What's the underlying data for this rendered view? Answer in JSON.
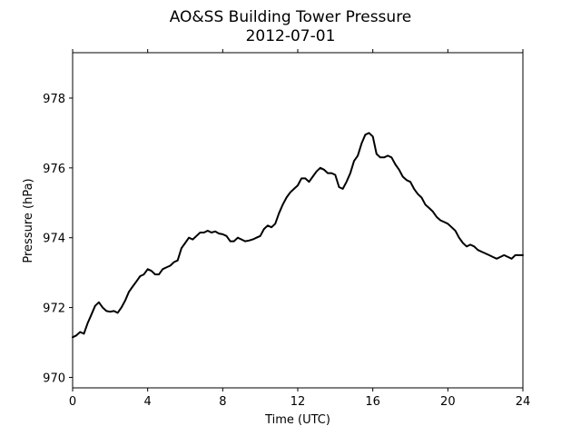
{
  "chart_data": {
    "type": "line",
    "title": "AO&SS Building Tower Pressure",
    "subtitle": "2012-07-01",
    "xlabel": "Time (UTC)",
    "ylabel": "Pressure (hPa)",
    "xlim": [
      0,
      24
    ],
    "ylim": [
      969.7,
      979.3
    ],
    "xticks": [
      0,
      4,
      8,
      12,
      16,
      20,
      24
    ],
    "xtick_labels": [
      "0",
      "4",
      "8",
      "12",
      "16",
      "20",
      "24"
    ],
    "yticks": [
      970,
      972,
      974,
      976,
      978
    ],
    "ytick_labels": [
      "970",
      "972",
      "974",
      "976",
      "978"
    ],
    "grid": false,
    "line_color": "#000000",
    "series": [
      {
        "x": [
          0,
          0.2,
          0.4,
          0.6,
          0.8,
          1.0,
          1.2,
          1.4,
          1.6,
          1.8,
          2.0,
          2.2,
          2.4,
          2.6,
          2.8,
          3.0,
          3.2,
          3.4,
          3.6,
          3.8,
          4.0,
          4.2,
          4.4,
          4.6,
          4.8,
          5.0,
          5.2,
          5.4,
          5.6,
          5.8,
          6.0,
          6.2,
          6.4,
          6.6,
          6.8,
          7.0,
          7.2,
          7.4,
          7.6,
          7.8,
          8.0,
          8.2,
          8.4,
          8.6,
          8.8,
          9.0,
          9.2,
          9.4,
          9.6,
          9.8,
          10.0,
          10.2,
          10.4,
          10.6,
          10.8,
          11.0,
          11.2,
          11.4,
          11.6,
          11.8,
          12.0,
          12.2,
          12.4,
          12.6,
          12.8,
          13.0,
          13.2,
          13.4,
          13.6,
          13.8,
          14.0,
          14.2,
          14.4,
          14.6,
          14.8,
          15.0,
          15.2,
          15.4,
          15.6,
          15.8,
          16.0,
          16.2,
          16.4,
          16.6,
          16.8,
          17.0,
          17.2,
          17.4,
          17.6,
          17.8,
          18.0,
          18.2,
          18.4,
          18.6,
          18.8,
          19.0,
          19.2,
          19.4,
          19.6,
          19.8,
          20.0,
          20.2,
          20.4,
          20.6,
          20.8,
          21.0,
          21.2,
          21.4,
          21.6,
          21.8,
          22.0,
          22.2,
          22.4,
          22.6,
          22.8,
          23.0,
          23.2,
          23.4,
          23.6,
          23.8,
          24.0
        ],
        "y": [
          971.15,
          971.2,
          971.3,
          971.25,
          971.55,
          971.8,
          972.05,
          972.15,
          972.0,
          971.9,
          971.88,
          971.9,
          971.85,
          972.0,
          972.2,
          972.45,
          972.6,
          972.75,
          972.9,
          972.95,
          973.1,
          973.05,
          972.95,
          972.95,
          973.1,
          973.15,
          973.2,
          973.3,
          973.35,
          973.7,
          973.85,
          974.0,
          973.95,
          974.05,
          974.15,
          974.15,
          974.2,
          974.15,
          974.18,
          974.12,
          974.1,
          974.05,
          973.9,
          973.9,
          974.0,
          973.95,
          973.9,
          973.92,
          973.95,
          974.0,
          974.05,
          974.25,
          974.35,
          974.3,
          974.4,
          974.7,
          974.95,
          975.15,
          975.3,
          975.4,
          975.5,
          975.7,
          975.7,
          975.6,
          975.75,
          975.9,
          976.0,
          975.95,
          975.85,
          975.85,
          975.8,
          975.45,
          975.4,
          975.6,
          975.85,
          976.2,
          976.35,
          976.7,
          976.95,
          977.0,
          976.9,
          976.4,
          976.3,
          976.3,
          976.35,
          976.3,
          976.1,
          975.95,
          975.75,
          975.65,
          975.6,
          975.4,
          975.25,
          975.15,
          974.95,
          974.85,
          974.75,
          974.6,
          974.5,
          974.45,
          974.4,
          974.3,
          974.2,
          974.0,
          973.85,
          973.75,
          973.8,
          973.75,
          973.65,
          973.6,
          973.55,
          973.5,
          973.45,
          973.4,
          973.45,
          973.5,
          973.45,
          973.4,
          973.5,
          973.5,
          973.5
        ]
      }
    ]
  }
}
